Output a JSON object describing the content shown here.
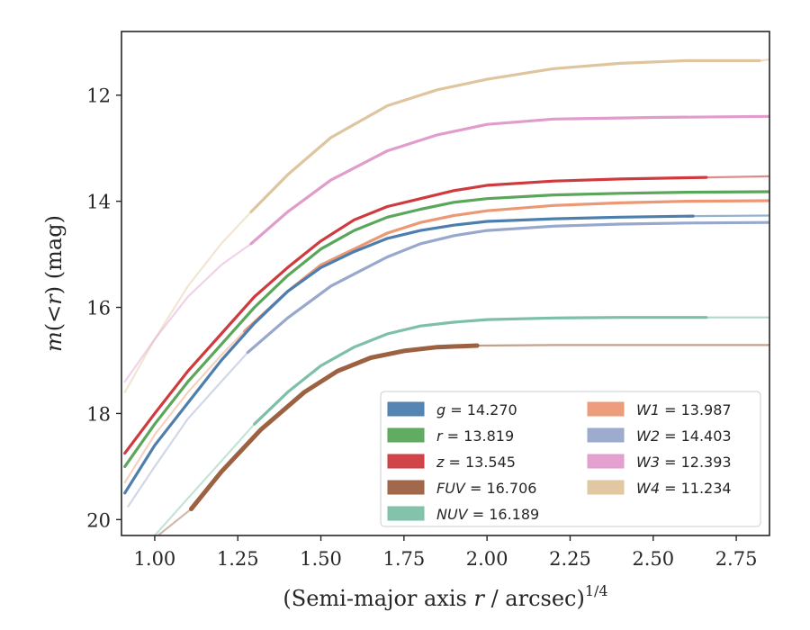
{
  "chart_data": {
    "type": "line",
    "xlabel_main": "(Semi-major axis ",
    "xlabel_var": "r",
    "xlabel_mid": " / arcsec)",
    "xlabel_sup": "1/4",
    "ylabel_pre": "m(<",
    "ylabel_var": "r",
    "ylabel_post": ") (mag)",
    "xlim": [
      0.9,
      2.85
    ],
    "ylim": [
      20.3,
      10.8
    ],
    "y_inverted": true,
    "xticks": [
      1.0,
      1.25,
      1.5,
      1.75,
      2.0,
      2.25,
      2.5,
      2.75
    ],
    "xtick_labels": [
      "1.00",
      "1.25",
      "1.50",
      "1.75",
      "2.00",
      "2.25",
      "2.50",
      "2.75"
    ],
    "yticks": [
      12,
      14,
      16,
      18,
      20
    ],
    "ytick_labels": [
      "12",
      "14",
      "16",
      "18",
      "20"
    ],
    "grid": false,
    "legend_position": "lower-right",
    "legend": [
      {
        "band": "g",
        "value": "14.270",
        "color": "#4c7eae"
      },
      {
        "band": "r",
        "value": "13.819",
        "color": "#5aa65a"
      },
      {
        "band": "z",
        "value": "13.545",
        "color": "#cf3a3f"
      },
      {
        "band": "FUV",
        "value": "16.706",
        "color": "#9c6141"
      },
      {
        "band": "NUV",
        "value": "16.189",
        "color": "#7dc0a7"
      },
      {
        "band": "W1",
        "value": "13.987",
        "color": "#ec9875"
      },
      {
        "band": "W2",
        "value": "14.403",
        "color": "#98a7cc"
      },
      {
        "band": "W3",
        "value": "12.393",
        "color": "#e09ccb"
      },
      {
        "band": "W4",
        "value": "11.234",
        "color": "#dfc59e"
      }
    ],
    "series": [
      {
        "band": "W4",
        "color": "#dfc59e",
        "faint": {
          "x": [
            0.91,
            1.0,
            1.1,
            1.2,
            1.29
          ],
          "y": [
            17.6,
            16.6,
            15.6,
            14.8,
            14.2
          ]
        },
        "bold": {
          "x": [
            1.29,
            1.4,
            1.53,
            1.7,
            1.85,
            2.0,
            2.2,
            2.4,
            2.6,
            2.82
          ],
          "y": [
            14.2,
            13.5,
            12.8,
            12.2,
            11.9,
            11.7,
            11.5,
            11.4,
            11.35,
            11.35
          ]
        },
        "tail": {
          "x": [
            2.82,
            2.85
          ],
          "y": [
            11.35,
            11.33
          ]
        }
      },
      {
        "band": "W3",
        "color": "#e09ccb",
        "faint": {
          "x": [
            0.91,
            1.0,
            1.1,
            1.2,
            1.29
          ],
          "y": [
            17.4,
            16.6,
            15.8,
            15.2,
            14.8
          ]
        },
        "bold": {
          "x": [
            1.29,
            1.4,
            1.53,
            1.7,
            1.85,
            2.0,
            2.2,
            2.5,
            2.85
          ],
          "y": [
            14.8,
            14.2,
            13.6,
            13.05,
            12.75,
            12.55,
            12.45,
            12.42,
            12.4
          ]
        },
        "tail": {
          "x": [],
          "y": []
        }
      },
      {
        "band": "z",
        "color": "#cf3a3f",
        "faint": {
          "x": [],
          "y": []
        },
        "bold": {
          "x": [
            0.91,
            1.0,
            1.1,
            1.2,
            1.3,
            1.4,
            1.5,
            1.6,
            1.7,
            1.8,
            1.9,
            2.0,
            2.2,
            2.4,
            2.66
          ],
          "y": [
            18.75,
            18.0,
            17.2,
            16.5,
            15.8,
            15.25,
            14.75,
            14.35,
            14.1,
            13.95,
            13.8,
            13.7,
            13.62,
            13.58,
            13.55
          ]
        },
        "tail": {
          "x": [
            2.66,
            2.85
          ],
          "y": [
            13.55,
            13.53
          ]
        }
      },
      {
        "band": "r",
        "color": "#5aa65a",
        "faint": {
          "x": [],
          "y": []
        },
        "bold": {
          "x": [
            0.91,
            1.0,
            1.1,
            1.2,
            1.3,
            1.4,
            1.5,
            1.6,
            1.7,
            1.8,
            1.9,
            2.0,
            2.2,
            2.4,
            2.6,
            2.85
          ],
          "y": [
            19.0,
            18.2,
            17.4,
            16.7,
            16.0,
            15.4,
            14.9,
            14.55,
            14.3,
            14.15,
            14.02,
            13.95,
            13.88,
            13.85,
            13.83,
            13.82
          ]
        },
        "tail": {
          "x": [],
          "y": []
        }
      },
      {
        "band": "W1",
        "color": "#ec9875",
        "faint": {
          "x": [
            0.91,
            1.0,
            1.1,
            1.2,
            1.27
          ],
          "y": [
            19.3,
            18.4,
            17.6,
            16.9,
            16.45
          ]
        },
        "bold": {
          "x": [
            1.27,
            1.4,
            1.5,
            1.6,
            1.7,
            1.8,
            1.9,
            2.0,
            2.2,
            2.4,
            2.6,
            2.85
          ],
          "y": [
            16.45,
            15.7,
            15.2,
            14.9,
            14.6,
            14.4,
            14.27,
            14.18,
            14.08,
            14.03,
            14.0,
            13.99
          ]
        },
        "tail": {
          "x": [],
          "y": []
        }
      },
      {
        "band": "g",
        "color": "#4c7eae",
        "faint": {
          "x": [],
          "y": []
        },
        "bold": {
          "x": [
            0.91,
            1.0,
            1.1,
            1.2,
            1.3,
            1.4,
            1.5,
            1.6,
            1.7,
            1.8,
            1.9,
            2.0,
            2.2,
            2.4,
            2.62
          ],
          "y": [
            19.5,
            18.6,
            17.8,
            17.0,
            16.3,
            15.7,
            15.25,
            14.95,
            14.7,
            14.55,
            14.45,
            14.38,
            14.33,
            14.3,
            14.28
          ]
        },
        "tail": {
          "x": [
            2.62,
            2.85
          ],
          "y": [
            14.28,
            14.27
          ]
        }
      },
      {
        "band": "W2",
        "color": "#98a7cc",
        "faint": {
          "x": [
            0.92,
            1.0,
            1.1,
            1.2,
            1.28
          ],
          "y": [
            19.75,
            19.0,
            18.1,
            17.4,
            16.85
          ]
        },
        "bold": {
          "x": [
            1.28,
            1.4,
            1.53,
            1.7,
            1.8,
            1.9,
            2.0,
            2.2,
            2.4,
            2.6,
            2.85
          ],
          "y": [
            16.85,
            16.2,
            15.6,
            15.05,
            14.8,
            14.65,
            14.55,
            14.47,
            14.43,
            14.41,
            14.4
          ]
        },
        "tail": {
          "x": [],
          "y": []
        }
      },
      {
        "band": "NUV",
        "color": "#7dc0a7",
        "faint": {
          "x": [
            1.0,
            1.1,
            1.2,
            1.3
          ],
          "y": [
            20.3,
            19.6,
            18.9,
            18.2
          ]
        },
        "bold": {
          "x": [
            1.3,
            1.4,
            1.5,
            1.6,
            1.7,
            1.8,
            1.9,
            2.0,
            2.2,
            2.4,
            2.66
          ],
          "y": [
            18.2,
            17.6,
            17.1,
            16.75,
            16.5,
            16.35,
            16.28,
            16.23,
            16.2,
            16.19,
            16.19
          ]
        },
        "tail": {
          "x": [
            2.66,
            2.85
          ],
          "y": [
            16.19,
            16.19
          ]
        }
      },
      {
        "band": "FUV",
        "color": "#9c6141",
        "faint": {
          "x": [
            1.01,
            1.05,
            1.11
          ],
          "y": [
            20.3,
            20.1,
            19.8
          ]
        },
        "bold": {
          "x": [
            1.11,
            1.2,
            1.32,
            1.45,
            1.55,
            1.65,
            1.75,
            1.85,
            1.97
          ],
          "y": [
            19.8,
            19.1,
            18.3,
            17.6,
            17.2,
            16.95,
            16.82,
            16.75,
            16.72
          ]
        },
        "tail": {
          "x": [
            1.97,
            2.2,
            2.5,
            2.85
          ],
          "y": [
            16.72,
            16.71,
            16.71,
            16.71
          ]
        }
      }
    ]
  }
}
